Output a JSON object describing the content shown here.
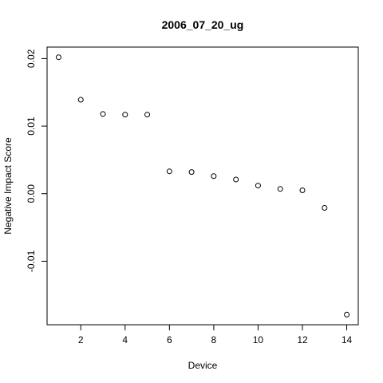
{
  "chart_data": {
    "type": "scatter",
    "title": "2006_07_20_ug",
    "x_label": "Device",
    "y_label": "Negative Impact Score",
    "x": [
      1,
      2,
      3,
      4,
      5,
      6,
      7,
      8,
      9,
      10,
      11,
      12,
      13,
      14
    ],
    "values": [
      0.0202,
      0.0139,
      0.0118,
      0.0117,
      0.0117,
      0.0033,
      0.0032,
      0.0026,
      0.0021,
      0.0012,
      0.0007,
      0.0005,
      -0.0021,
      -0.0179
    ],
    "color": "#000000",
    "xlim": [
      0.48,
      14.52
    ],
    "xticks": [
      2,
      4,
      6,
      8,
      10,
      12,
      14
    ],
    "ylim": [
      -0.0194,
      0.0217
    ],
    "yticks": [
      -0.01,
      {
        "value": 0,
        "label": "0.00"
      },
      0.01,
      0.02
    ]
  }
}
